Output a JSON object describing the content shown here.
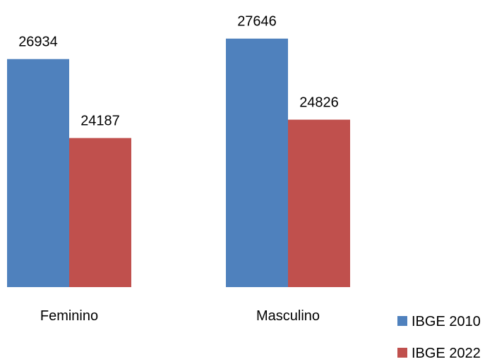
{
  "chart_data": {
    "type": "bar",
    "title": "",
    "xlabel": "",
    "ylabel": "",
    "categories": [
      "Feminino",
      "Masculino"
    ],
    "series": [
      {
        "name": "IBGE 2010",
        "values": [
          26934,
          27646
        ],
        "color": "#4F81BD"
      },
      {
        "name": "IBGE 2022",
        "values": [
          24187,
          24826
        ],
        "color": "#C0504D"
      }
    ],
    "ylim": [
      19000,
      28400
    ],
    "grid": false,
    "legend_position": "right"
  }
}
